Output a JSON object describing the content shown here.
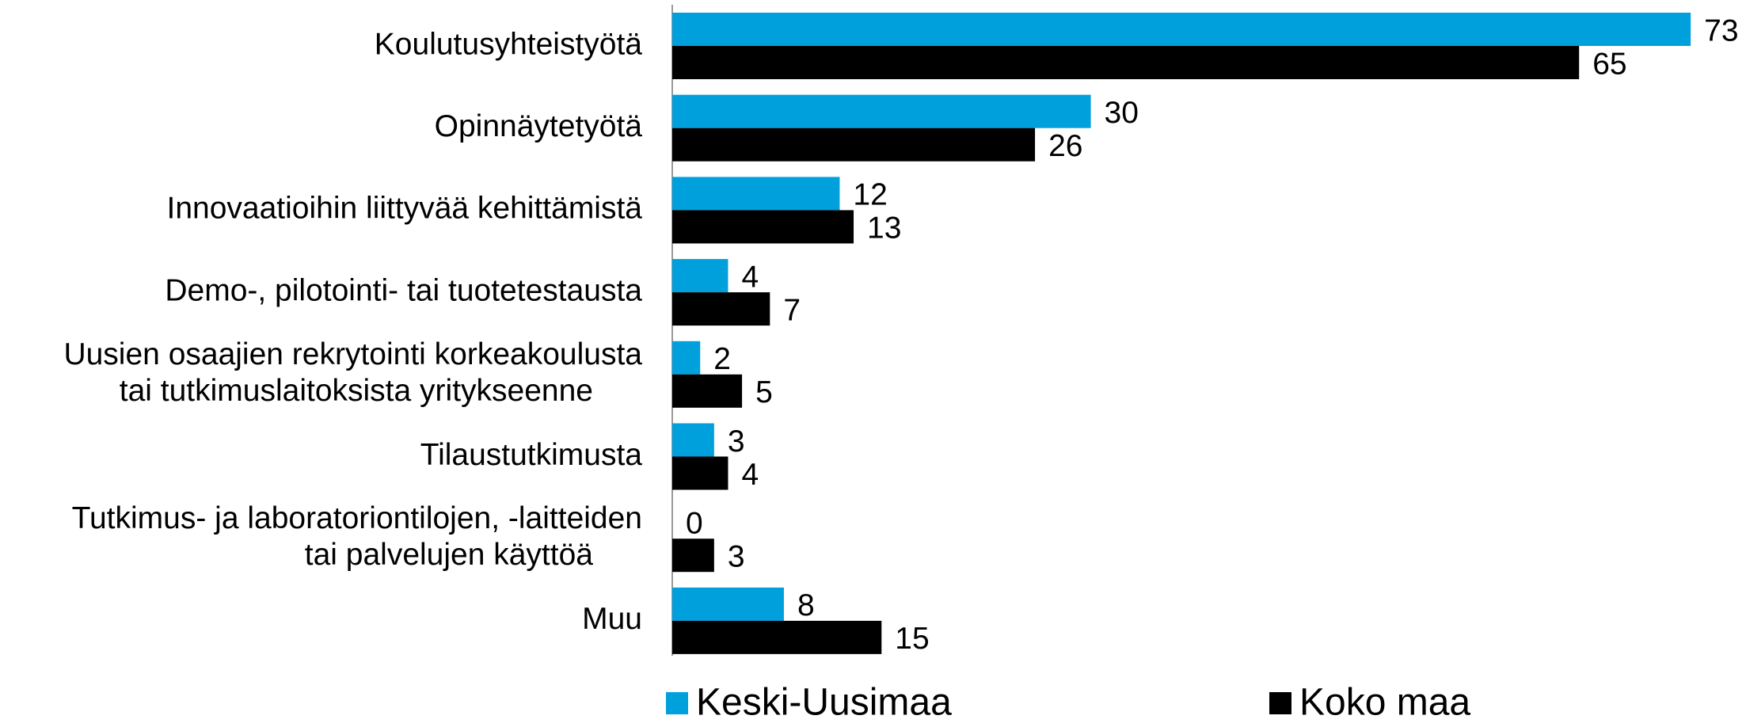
{
  "chart_data": {
    "type": "bar",
    "orientation": "horizontal",
    "categories": [
      "Koulutusyhteistyötä",
      "Opinnäytetyötä",
      "Innovaatioihin liittyvää kehittämistä",
      "Demo-, pilotointi- tai tuotetestausta",
      "Uusien osaajien rekrytointi korkeakoulusta\ntai tutkimuslaitoksista yritykseenne",
      "Tilaustutkimusta",
      "Tutkimus- ja laboratoriontilojen, -laitteiden\ntai  palvelujen käyttöä",
      "Muu"
    ],
    "series": [
      {
        "name": "Keski-Uusimaa",
        "color": "#00a0dc",
        "values": [
          73,
          30,
          12,
          4,
          2,
          3,
          0,
          8
        ]
      },
      {
        "name": "Koko maa",
        "color": "#000000",
        "values": [
          65,
          26,
          13,
          7,
          5,
          4,
          3,
          15
        ]
      }
    ],
    "xlim": [
      0,
      76
    ],
    "legend": "bottom"
  }
}
